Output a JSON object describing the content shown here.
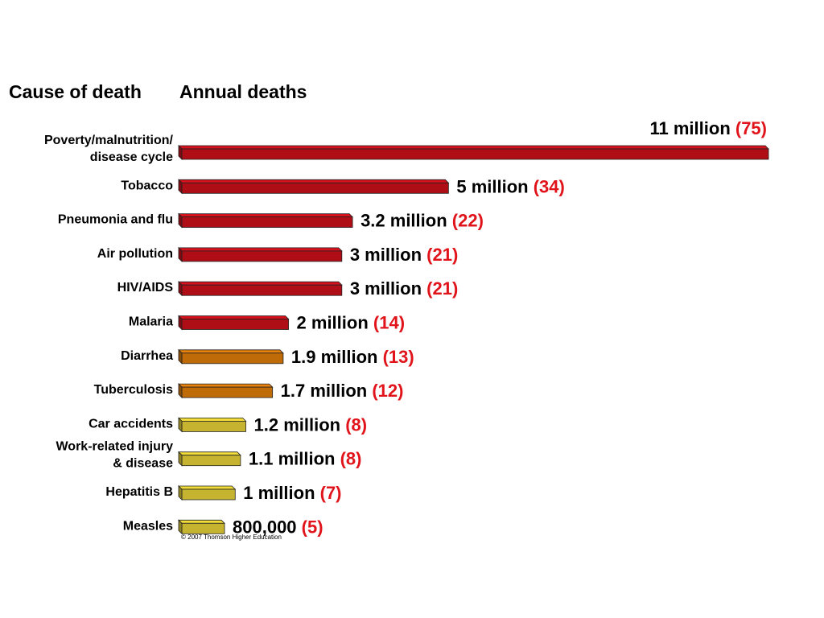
{
  "header": {
    "cause_label": "Cause of death",
    "deaths_label": "Annual deaths"
  },
  "credit": "© 2007 Thomson Higher Education",
  "colors": {
    "high": "#d6111c",
    "medium": "#e8820a",
    "low": "#f2dc3a",
    "value_text": "#000000",
    "rank_text": "#e0141a"
  },
  "chart_data": {
    "type": "bar",
    "orientation": "horizontal",
    "categories": [
      "Poverty/malnutrition/\ndisease cycle",
      "Tobacco",
      "Pneumonia and flu",
      "Air pollution",
      "HIV/AIDS",
      "Malaria",
      "Diarrhea",
      "Tuberculosis",
      "Car accidents",
      "Work-related injury\n& disease",
      "Hepatitis B",
      "Measles"
    ],
    "values": [
      11000000,
      5000000,
      3200000,
      3000000,
      3000000,
      2000000,
      1900000,
      1700000,
      1200000,
      1100000,
      1000000,
      800000
    ],
    "value_labels": [
      "11 million",
      "5 million",
      "3.2 million",
      "3 million",
      "3 million",
      "2 million",
      "1.9 million",
      "1.7 million",
      "1.2 million",
      "1.1 million",
      "1 million",
      "800,000"
    ],
    "rank_labels": [
      "(75)",
      "(34)",
      "(22)",
      "(21)",
      "(21)",
      "(14)",
      "(13)",
      "(12)",
      "(8)",
      "(8)",
      "(7)",
      "(5)"
    ],
    "bar_colors": [
      "high",
      "high",
      "high",
      "high",
      "high",
      "high",
      "medium",
      "medium",
      "low",
      "low",
      "low",
      "low"
    ],
    "xlabel": "",
    "ylabel": ""
  }
}
